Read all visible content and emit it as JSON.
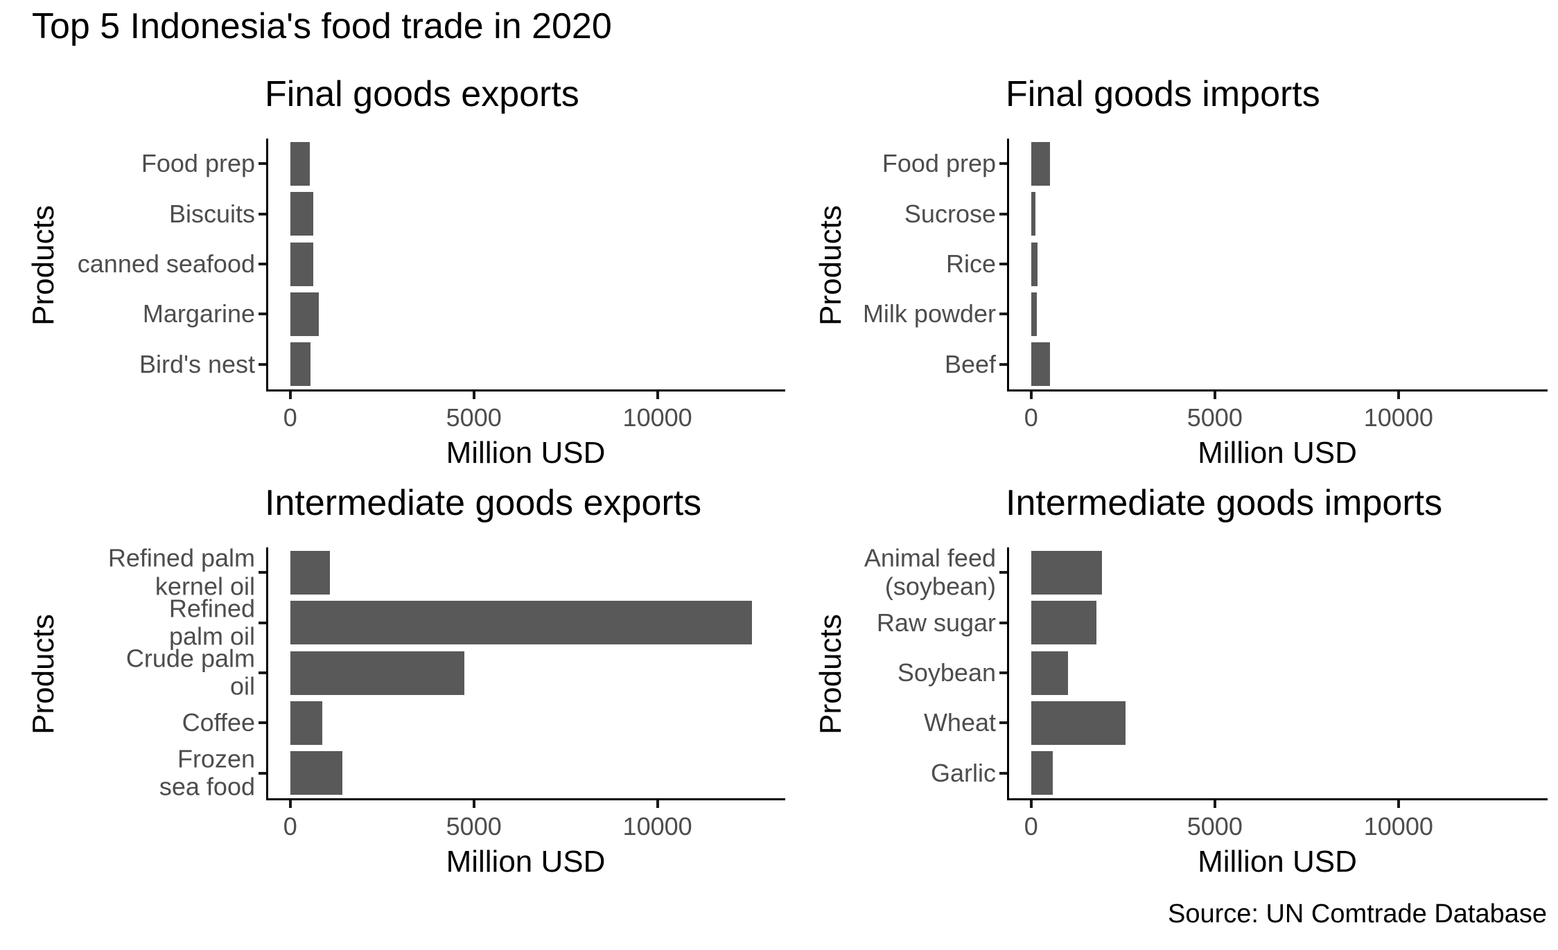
{
  "figure": {
    "title": "Top 5 Indonesia's food trade in 2020",
    "source": "Source: UN Comtrade Database",
    "colors": {
      "bar": "#595959",
      "axis_text": "#4d4d4d",
      "axis_line": "#000000",
      "tick_mark": "#1a1a1a",
      "title_text": "#000000",
      "background": "#ffffff"
    }
  },
  "chart_data": [
    {
      "type": "bar",
      "orientation": "horizontal",
      "title": "Final goods exports",
      "xlabel": "Million USD",
      "ylabel": "Products",
      "categories": [
        "Food prep",
        "Biscuits",
        "canned seafood",
        "Margarine",
        "Bird's nest"
      ],
      "values": [
        530,
        630,
        620,
        780,
        560
      ],
      "x_ticks": [
        0,
        5000,
        10000
      ],
      "x_tick_labels": [
        "0",
        "5000",
        "10000"
      ],
      "x_domain": [
        -600,
        13480
      ],
      "grid": false,
      "legend": false
    },
    {
      "type": "bar",
      "orientation": "horizontal",
      "title": "Final goods imports",
      "xlabel": "Million USD",
      "ylabel": "Products",
      "categories": [
        "Food prep",
        "Sucrose",
        "Rice",
        "Milk powder",
        "Beef"
      ],
      "values": [
        520,
        120,
        170,
        150,
        520
      ],
      "x_ticks": [
        0,
        5000,
        10000
      ],
      "x_tick_labels": [
        "0",
        "5000",
        "10000"
      ],
      "x_domain": [
        -600,
        14060
      ],
      "grid": false,
      "legend": false
    },
    {
      "type": "bar",
      "orientation": "horizontal",
      "title": "Intermediate goods exports",
      "xlabel": "Million USD",
      "ylabel": "Products",
      "categories": [
        "Refined palm\nkernel oil",
        "Refined\npalm oil",
        "Crude palm\noil",
        "Coffee",
        "Frozen\nsea food"
      ],
      "values": [
        1080,
        12570,
        4740,
        880,
        1420
      ],
      "x_ticks": [
        0,
        5000,
        10000
      ],
      "x_tick_labels": [
        "0",
        "5000",
        "10000"
      ],
      "x_domain": [
        -600,
        13480
      ],
      "grid": false,
      "legend": false
    },
    {
      "type": "bar",
      "orientation": "horizontal",
      "title": "Intermediate goods imports",
      "xlabel": "Million USD",
      "ylabel": "Products",
      "categories": [
        "Animal feed\n(soybean)",
        "Raw sugar",
        "Soybean",
        "Wheat",
        "Garlic"
      ],
      "values": [
        1920,
        1780,
        1000,
        2570,
        580
      ],
      "x_ticks": [
        0,
        5000,
        10000
      ],
      "x_tick_labels": [
        "0",
        "5000",
        "10000"
      ],
      "x_domain": [
        -600,
        14060
      ],
      "grid": false,
      "legend": false
    }
  ]
}
